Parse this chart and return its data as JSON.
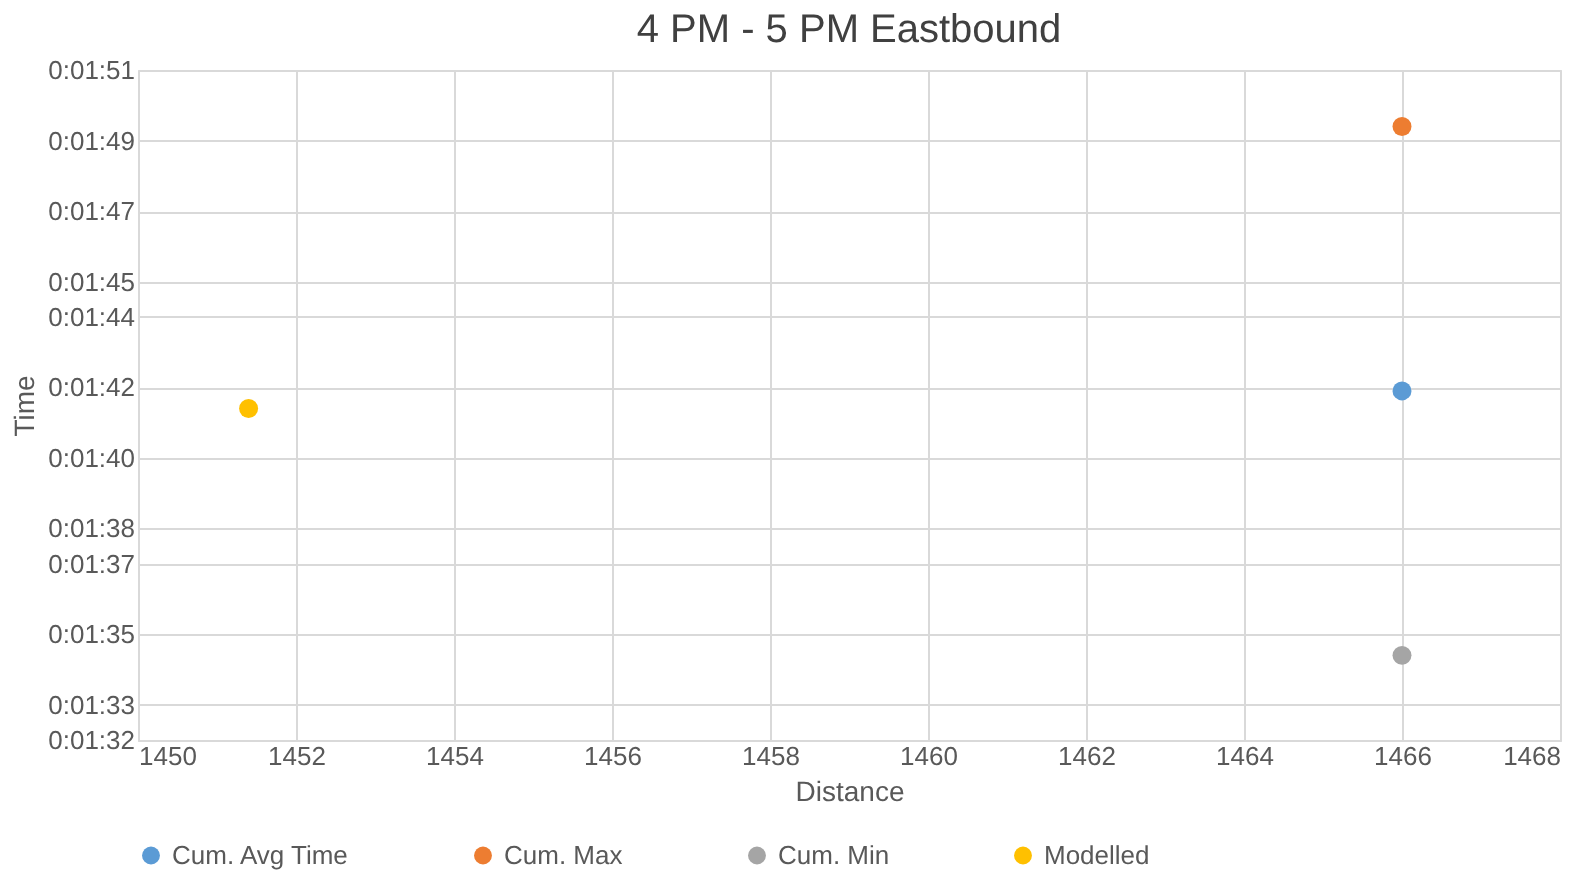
{
  "chart_data": {
    "type": "scatter",
    "title": "4 PM - 5 PM Eastbound",
    "xlabel": "Distance",
    "ylabel": "Time",
    "series": [
      {
        "name": "Cum. Avg Time",
        "color": "#5b9bd5",
        "values": [
          null,
          101.9
        ]
      },
      {
        "name": "Cum. Max",
        "color": "#ed7d31",
        "values": [
          null,
          109.4
        ]
      },
      {
        "name": "Cum. Min",
        "color": "#a5a5a5",
        "values": [
          null,
          94.4
        ]
      },
      {
        "name": "Modelled",
        "color": "#ffc000",
        "values": [
          101.4,
          null
        ]
      }
    ],
    "x": [
      1451.4,
      1466
    ],
    "xlim": [
      1450,
      1468
    ],
    "xticks": [
      {
        "value": 1450,
        "label": "1450"
      },
      {
        "value": 1452,
        "label": "1452"
      },
      {
        "value": 1454,
        "label": "1454"
      },
      {
        "value": 1456,
        "label": "1456"
      },
      {
        "value": 1458,
        "label": "1458"
      },
      {
        "value": 1460,
        "label": "1460"
      },
      {
        "value": 1462,
        "label": "1462"
      },
      {
        "value": 1464,
        "label": "1464"
      },
      {
        "value": 1466,
        "label": "1466"
      },
      {
        "value": 1468,
        "label": "1468"
      }
    ],
    "ylim": [
      92,
      111
    ],
    "yticks": [
      {
        "value": 92,
        "label": "0:01:32"
      },
      {
        "value": 93,
        "label": "0:01:33"
      },
      {
        "value": 95,
        "label": "0:01:35"
      },
      {
        "value": 97,
        "label": "0:01:37"
      },
      {
        "value": 98,
        "label": "0:01:38"
      },
      {
        "value": 100,
        "label": "0:01:40"
      },
      {
        "value": 102,
        "label": "0:01:42"
      },
      {
        "value": 104,
        "label": "0:01:44"
      },
      {
        "value": 105,
        "label": "0:01:45"
      },
      {
        "value": 107,
        "label": "0:01:47"
      },
      {
        "value": 109,
        "label": "0:01:49"
      },
      {
        "value": 111,
        "label": "0:01:51"
      }
    ],
    "grid": true,
    "legend": "bottom",
    "marker": "circle"
  }
}
